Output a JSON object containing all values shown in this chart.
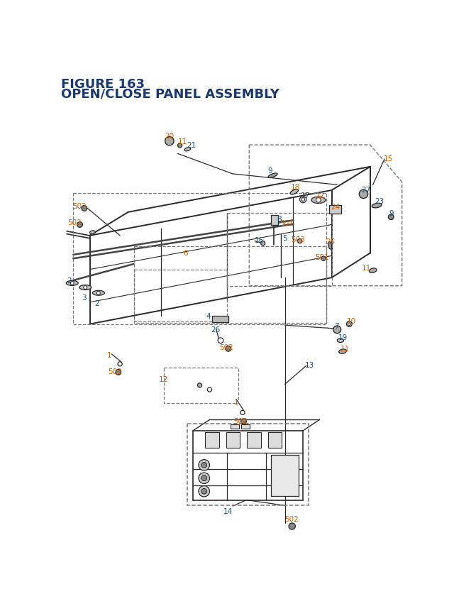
{
  "title_line1": "FIGURE 163",
  "title_line2": "OPEN/CLOSE PANEL ASSEMBLY",
  "title_color": "#1a3a6e",
  "title_fontsize": 12.5,
  "bg_color": "#ffffff",
  "oc": "#c8600a",
  "bc": "#1a5276",
  "dc": "#2a2a2a",
  "dash_color": "#777777",
  "label_fs": 7.5
}
